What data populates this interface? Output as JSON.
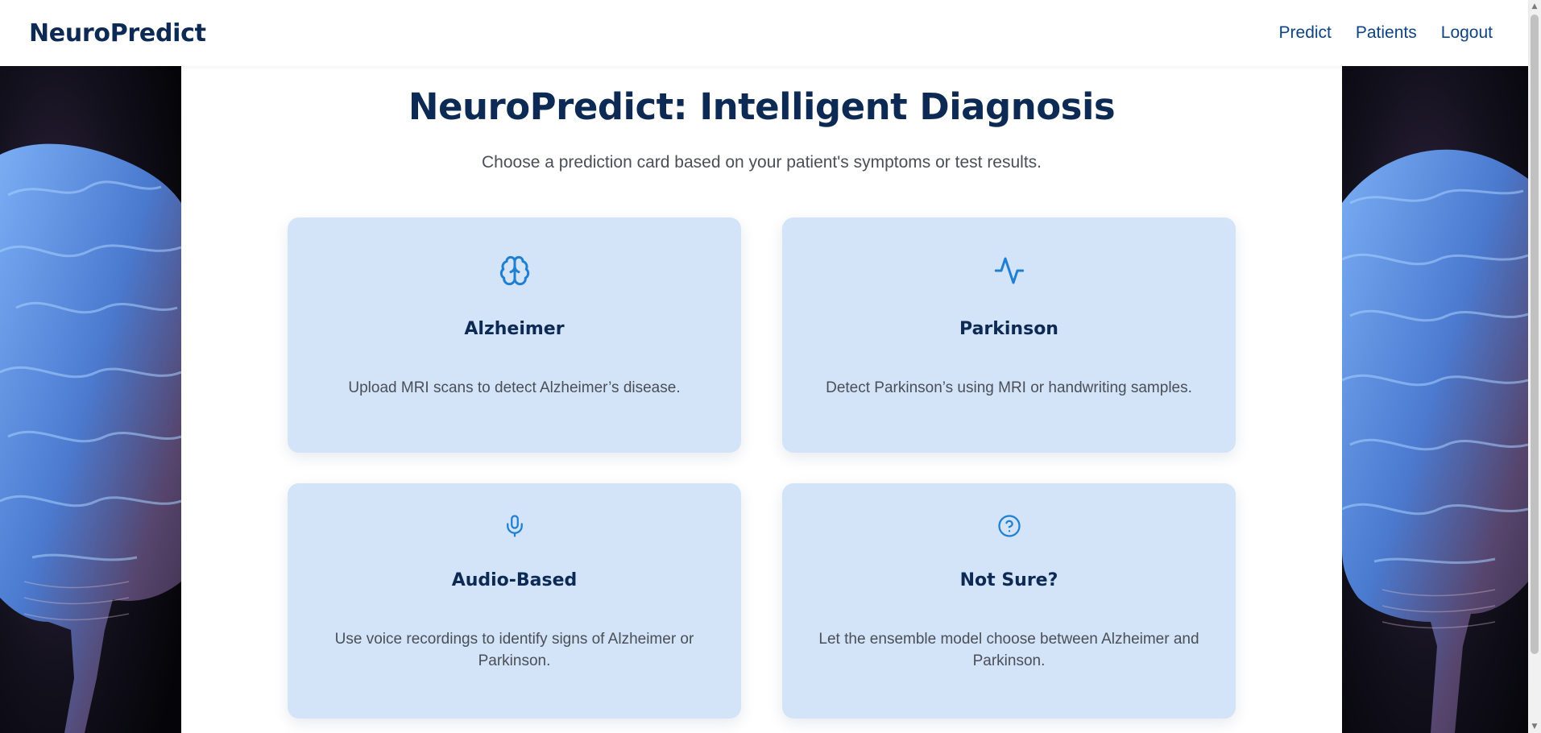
{
  "navbar": {
    "brand": "NeuroPredict",
    "links": [
      {
        "label": "Predict"
      },
      {
        "label": "Patients"
      },
      {
        "label": "Logout"
      }
    ]
  },
  "main": {
    "title": "NeuroPredict: Intelligent Diagnosis",
    "subtitle": "Choose a prediction card based on your patient's symptoms or test results.",
    "cards": [
      {
        "icon": "brain-icon",
        "title": "Alzheimer",
        "description": "Upload MRI scans to detect Alzheimer’s disease."
      },
      {
        "icon": "activity-icon",
        "title": "Parkinson",
        "description": "Detect Parkinson’s using MRI or handwriting samples."
      },
      {
        "icon": "microphone-icon",
        "title": "Audio-Based",
        "description": "Use voice recordings to identify signs of Alzheimer or Parkinson."
      },
      {
        "icon": "question-circle-icon",
        "title": "Not Sure?",
        "description": "Let the ensemble model choose between Alzheimer and Parkinson."
      }
    ]
  },
  "colors": {
    "brand": "#0c2a54",
    "nav_link": "#0e4483",
    "card_bg": "#d3e3f8",
    "icon": "#1f7fd1"
  }
}
